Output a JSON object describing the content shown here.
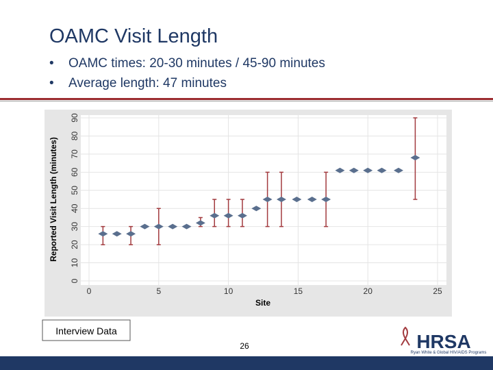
{
  "slide": {
    "title": "OAMC Visit Length",
    "bullets": [
      "OAMC times: 20-30 minutes / 45-90 minutes",
      "Average length: 47 minutes"
    ],
    "caption": "Interview Data",
    "page_number": "26",
    "logo": {
      "name": "HRSA",
      "subtitle": "Ryan White & Global HIV/AIDS Programs"
    }
  },
  "chart_data": {
    "type": "scatter",
    "x_label": "Site",
    "y_label": "Reported Visit Length (minutes)",
    "xlim": [
      0,
      25
    ],
    "ylim": [
      0,
      90
    ],
    "xticks": [
      0,
      5,
      10,
      15,
      20,
      25
    ],
    "yticks": [
      0,
      10,
      20,
      30,
      40,
      50,
      60,
      70,
      80,
      90
    ],
    "grid": true,
    "series": [
      {
        "color": "#5a6f8e",
        "error_color": "#a23a3e",
        "x": [
          1,
          2,
          3,
          4,
          5,
          6,
          7,
          8,
          9,
          10,
          11,
          12,
          12.8,
          13.8,
          14.9,
          16,
          17,
          18,
          19,
          20,
          21,
          22.2,
          23.4
        ],
        "values": [
          26,
          26,
          26,
          30,
          30,
          30,
          30,
          32,
          36,
          36,
          36,
          40,
          45,
          45,
          45,
          45,
          45,
          61,
          61,
          61,
          61,
          61,
          68
        ],
        "low": [
          20,
          null,
          20,
          null,
          20,
          null,
          null,
          30,
          30,
          30,
          30,
          null,
          30,
          30,
          null,
          null,
          30,
          null,
          null,
          null,
          null,
          null,
          45
        ],
        "high": [
          30,
          null,
          30,
          null,
          40,
          null,
          null,
          35,
          45,
          45,
          45,
          null,
          60,
          60,
          null,
          null,
          60,
          null,
          null,
          null,
          null,
          null,
          90
        ]
      }
    ]
  }
}
